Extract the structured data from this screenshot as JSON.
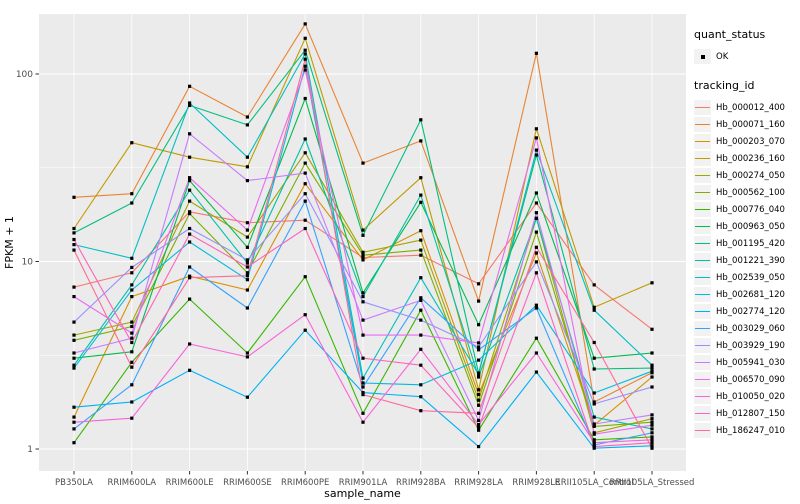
{
  "figure": {
    "background": "#FFFFFF",
    "panel_background": "#EBEBEB",
    "gridline_color": "#FFFFFF",
    "tick_label_color": "#4D4D4D",
    "axis_title_color": "#000000",
    "point_color": "#000000"
  },
  "legend": {
    "quant_status_title": "quant_status",
    "quant_status_items": [
      {
        "label": "OK",
        "symbol": "point"
      }
    ],
    "tracking_id_title": "tracking_id",
    "key_background": "#F2F2F2"
  },
  "chart_data": {
    "type": "line",
    "title": "",
    "xlabel": "sample_name",
    "ylabel": "FPKM + 1",
    "y_scale": "log10",
    "y_ticks": [
      1,
      10,
      100
    ],
    "y_tick_labels": [
      "1",
      "10",
      "100"
    ],
    "ylim": [
      0.93,
      215
    ],
    "grid": true,
    "legend_position": "right",
    "categories": [
      "PB350LA",
      "RRIM600LA",
      "RRIM600LE",
      "RRIM600SE",
      "RRIM600PE",
      "RRIM901LA",
      "RRIM928BA",
      "RRIM928LA",
      "RRIM928LE",
      "RRII105LA_Control",
      "RRII105LA_Stressed"
    ],
    "series": [
      {
        "name": "Hb_000012_400",
        "color": "#F8766D",
        "values": [
          7.3,
          8.7,
          18.4,
          16.1,
          16.6,
          10.5,
          10.8,
          7.6,
          20.5,
          7.5,
          4.35
        ]
      },
      {
        "name": "Hb_000071_160",
        "color": "#EA8331",
        "values": [
          22,
          23,
          86,
          59,
          185,
          33.5,
          44,
          6.15,
          129,
          1.78,
          2.55
        ]
      },
      {
        "name": "Hb_000203_070",
        "color": "#D89000",
        "values": [
          1.48,
          6.5,
          8.35,
          7.05,
          26,
          10.2,
          14.6,
          1.95,
          11.1,
          1.34,
          2.42
        ]
      },
      {
        "name": "Hb_000236_160",
        "color": "#C09B00",
        "values": [
          15,
          43,
          36,
          32,
          155,
          14.7,
          28,
          2.07,
          51,
          5.7,
          7.7
        ]
      },
      {
        "name": "Hb_000274_050",
        "color": "#A3A500",
        "values": [
          4.05,
          4.75,
          21,
          13.5,
          38,
          11.2,
          13,
          1.82,
          17,
          1.22,
          1.45
        ]
      },
      {
        "name": "Hb_000562_100",
        "color": "#7CAE00",
        "values": [
          3.8,
          4.5,
          18,
          8.7,
          33.5,
          10.8,
          11.5,
          1.71,
          14.35,
          1.32,
          1.39
        ]
      },
      {
        "name": "Hb_000776_040",
        "color": "#39B600",
        "values": [
          1.08,
          2.9,
          6.3,
          3.25,
          8.3,
          1.55,
          5.5,
          1.26,
          3.9,
          1.12,
          1.16
        ]
      },
      {
        "name": "Hb_000963_050",
        "color": "#00BB4E",
        "values": [
          3.05,
          3.3,
          27,
          11.9,
          74,
          6.8,
          20.7,
          4.6,
          23.2,
          3.05,
          3.25
        ]
      },
      {
        "name": "Hb_001195_420",
        "color": "#00BF7D",
        "values": [
          14.2,
          20.5,
          68,
          53.5,
          134,
          13.8,
          57,
          2.54,
          37,
          2.67,
          2.7
        ]
      },
      {
        "name": "Hb_001221_390",
        "color": "#00C1A3",
        "values": [
          2.8,
          7.5,
          24,
          9.8,
          45,
          6.5,
          22.6,
          2.42,
          17,
          1.48,
          1.28
        ]
      },
      {
        "name": "Hb_002539_050",
        "color": "#00BFC4",
        "values": [
          12.3,
          10.4,
          70,
          36,
          128,
          2.39,
          8.2,
          2.5,
          39.3,
          5.5,
          2.8
        ]
      },
      {
        "name": "Hb_002681_120",
        "color": "#00BAE0",
        "values": [
          2.7,
          7.05,
          12.7,
          8.0,
          110,
          2.25,
          2.2,
          2.98,
          5.85,
          1.99,
          2.6
        ]
      },
      {
        "name": "Hb_002774_120",
        "color": "#00B0F6",
        "values": [
          1.67,
          1.78,
          2.63,
          1.89,
          4.3,
          2.0,
          1.9,
          1.03,
          2.57,
          1.01,
          1.04
        ]
      },
      {
        "name": "Hb_003029_060",
        "color": "#35A2FF",
        "values": [
          1.28,
          2.2,
          9.35,
          5.65,
          21,
          2.14,
          6.4,
          3.38,
          5.65,
          1.05,
          1.22
        ]
      },
      {
        "name": "Hb_003929_190",
        "color": "#9590FF",
        "values": [
          4.75,
          9.3,
          15,
          10.2,
          23,
          6.1,
          4.87,
          3.5,
          9.95,
          1.74,
          2.14
        ]
      },
      {
        "name": "Hb_005941_030",
        "color": "#C77CFF",
        "values": [
          3.25,
          3.9,
          48,
          27,
          29.6,
          4.87,
          6.2,
          1.42,
          18.2,
          1.36,
          1.52
        ]
      },
      {
        "name": "Hb_006570_090",
        "color": "#E76BF3",
        "values": [
          6.5,
          4.15,
          28,
          14.7,
          105,
          4.05,
          4.05,
          3.68,
          45.6,
          1.2,
          1.34
        ]
      },
      {
        "name": "Hb_010050_020",
        "color": "#FA62DB",
        "values": [
          1.39,
          1.46,
          3.63,
          3.1,
          5.2,
          1.39,
          3.4,
          1.35,
          3.25,
          1.08,
          1.12
        ]
      },
      {
        "name": "Hb_012807_150",
        "color": "#FF62BC",
        "values": [
          13.1,
          3.7,
          14,
          9.35,
          15,
          3.05,
          2.8,
          1.3,
          8.7,
          1.03,
          1.08
        ]
      },
      {
        "name": "Hb_186247_010",
        "color": "#FF6A98",
        "values": [
          11.5,
          2.73,
          8.2,
          8.4,
          120,
          1.95,
          1.6,
          1.55,
          11.9,
          3.7,
          1.01
        ]
      }
    ]
  }
}
